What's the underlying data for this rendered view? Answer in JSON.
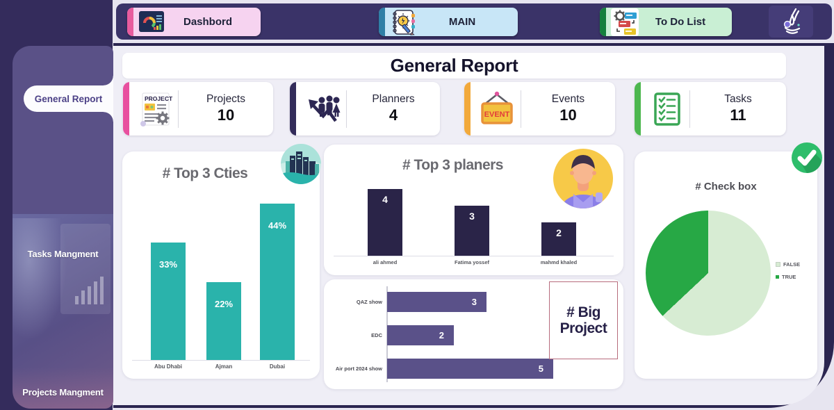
{
  "topbar": {
    "tabs": [
      {
        "label": "Dashbord",
        "bg": "#f6d3f0",
        "accent": "#e85c9e",
        "icon": "dashboard-icon"
      },
      {
        "label": "MAIN",
        "bg": "#c8e6f7",
        "accent": "#2f7fa6",
        "icon": "notebook-idea-icon"
      },
      {
        "label": "To Do List",
        "bg": "#c9efd4",
        "accent": "#15803d",
        "icon": "todo-gear-icon"
      }
    ],
    "logo": "calligraphy-logo"
  },
  "sidebar": {
    "items": [
      {
        "label": "General Report",
        "active": true
      },
      {
        "label": "Tasks Mangment",
        "active": false
      },
      {
        "label": "Projects Mangment",
        "active": false
      }
    ]
  },
  "header": {
    "title": "General Report"
  },
  "kpis": [
    {
      "label": "Projects",
      "value": "10",
      "accent": "#e8509f",
      "icon": "project-document-icon"
    },
    {
      "label": "Planners",
      "value": "4",
      "accent": "#332c5a",
      "icon": "planners-growth-icon"
    },
    {
      "label": "Events",
      "value": "10",
      "accent": "#f2a93b",
      "icon": "event-sign-icon"
    },
    {
      "label": "Tasks",
      "value": "11",
      "accent": "#4db74f",
      "icon": "tasks-checklist-icon"
    }
  ],
  "chart_data": [
    {
      "type": "bar",
      "title": "# Top 3 Cties",
      "categories": [
        "Abu Dhabi",
        "Ajman",
        "Dubai"
      ],
      "values": [
        33,
        22,
        44
      ],
      "value_labels": [
        "33%",
        "22%",
        "44%"
      ],
      "bar_color": "#2ab3ab",
      "ylim": [
        0,
        45
      ],
      "grid": false,
      "badge": "city-icon"
    },
    {
      "type": "bar",
      "title": "# Top 3 planers",
      "categories": [
        "ali ahmed",
        "Fatima yossef",
        "mahmd khaled"
      ],
      "values": [
        4,
        3,
        2
      ],
      "value_labels": [
        "4",
        "3",
        "2"
      ],
      "bar_color": "#2a2448",
      "ylim": [
        0,
        4
      ],
      "grid": false,
      "badge": "avatar-icon"
    },
    {
      "type": "bar_horizontal",
      "title": "# Big Project",
      "categories": [
        "QAZ show",
        "EDC",
        "Air port 2024 show"
      ],
      "values": [
        3,
        2,
        5
      ],
      "value_labels": [
        "3",
        "2",
        "5"
      ],
      "bar_color": "#5a5189",
      "xlim": [
        0,
        5
      ],
      "grid": false
    },
    {
      "type": "pie",
      "title": "# Check box",
      "labels": [
        "FALSE",
        "TRUE"
      ],
      "values_pct": [
        63,
        37
      ],
      "colors": [
        "#d7ecd3",
        "#27a845"
      ],
      "legend_position": "right",
      "badge": "check-circle-icon"
    }
  ],
  "colors": {
    "background": "#e7e5f0",
    "left_column": "#342c5c",
    "topbar": "#3a3368",
    "frame_navy": "#2b2550",
    "panel": "#efeef6",
    "sidebar_panel": "#5a5187"
  }
}
